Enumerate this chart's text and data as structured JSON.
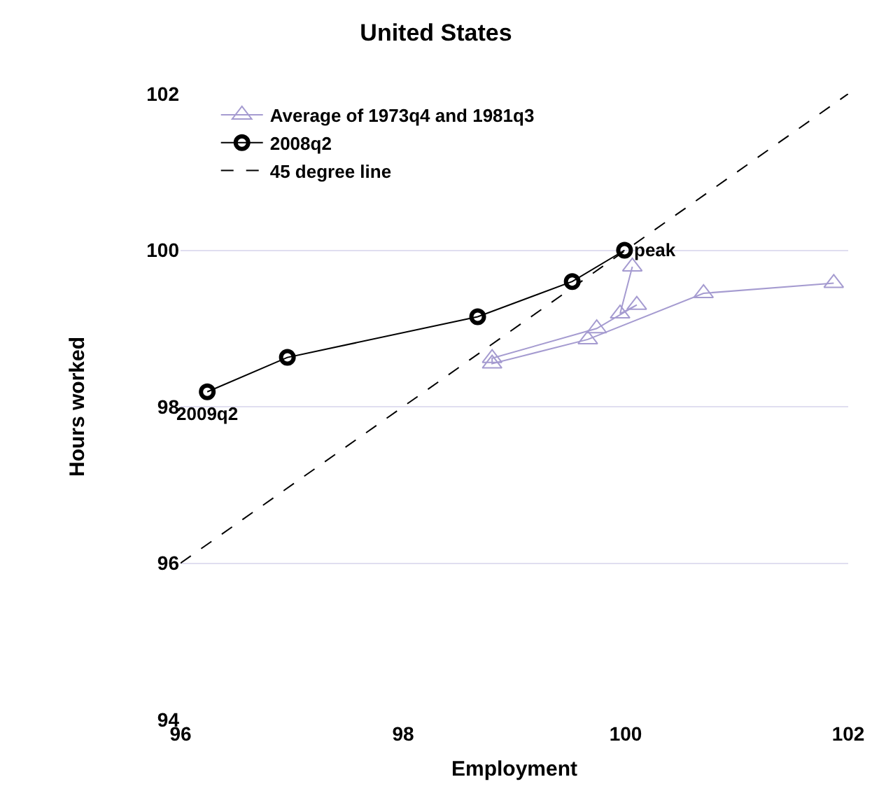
{
  "chart_data": {
    "type": "line",
    "title": "United States",
    "xlabel": "Employment",
    "ylabel": "Hours worked",
    "xlim": [
      96,
      102
    ],
    "xticks": [
      96,
      98,
      100,
      102
    ],
    "ylim": [
      94,
      102
    ],
    "yticks": [
      94,
      96,
      98,
      100,
      102
    ],
    "grid": "y",
    "legend": "top left",
    "series": [
      {
        "name": "Average of 1973q4 and 1981q3",
        "color": "#a59bd0",
        "marker": "triangle",
        "line_style": "solid",
        "x": [
          100.06,
          99.95,
          100.1,
          99.74,
          98.8,
          98.8,
          99.66,
          100.7,
          101.87
        ],
        "values": [
          99.79,
          99.19,
          99.3,
          99.0,
          98.62,
          98.55,
          98.86,
          99.45,
          99.58
        ]
      },
      {
        "name": "2008q2",
        "color": "#000000",
        "marker": "circle",
        "line_style": "solid",
        "x": [
          99.99,
          99.52,
          98.67,
          96.96,
          96.24
        ],
        "values": [
          100.0,
          99.6,
          99.15,
          98.63,
          98.19
        ]
      },
      {
        "name": "45 degree line",
        "color": "#000000",
        "marker": "none",
        "line_style": "dashed",
        "x": [
          96,
          102
        ],
        "values": [
          96,
          102
        ]
      }
    ],
    "annotations": [
      {
        "text": "peak",
        "x": 99.99,
        "y": 100.0
      },
      {
        "text": "2009q2",
        "x": 96.24,
        "y": 98.19
      }
    ]
  }
}
